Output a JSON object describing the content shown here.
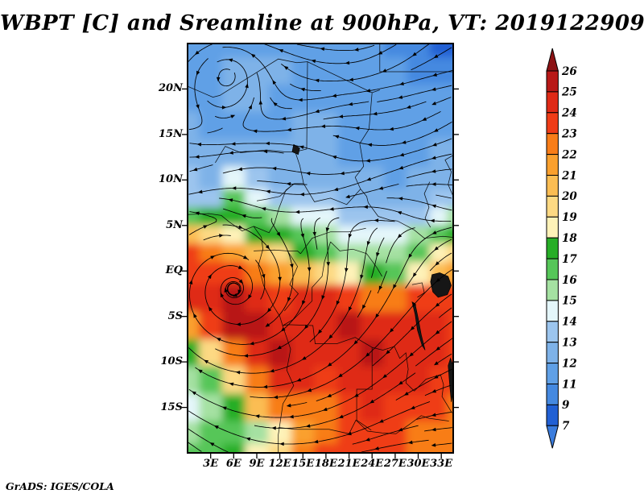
{
  "title": "WBPT [C] and Sreamline at 900hPa, VT: 2019122909",
  "footer": "GrADS: IGES/COLA",
  "axes": {
    "lat_ticks": [
      {
        "label": "20N",
        "deg": 20
      },
      {
        "label": "15N",
        "deg": 15
      },
      {
        "label": "10N",
        "deg": 10
      },
      {
        "label": "5N",
        "deg": 5
      },
      {
        "label": "EQ",
        "deg": 0
      },
      {
        "label": "5S",
        "deg": -5
      },
      {
        "label": "10S",
        "deg": -10
      },
      {
        "label": "15S",
        "deg": -15
      }
    ],
    "lon_ticks": [
      {
        "label": "3E",
        "deg": 3
      },
      {
        "label": "6E",
        "deg": 6
      },
      {
        "label": "9E",
        "deg": 9
      },
      {
        "label": "12E",
        "deg": 12
      },
      {
        "label": "15E",
        "deg": 15
      },
      {
        "label": "18E",
        "deg": 18
      },
      {
        "label": "21E",
        "deg": 21
      },
      {
        "label": "24E",
        "deg": 24
      },
      {
        "label": "27E",
        "deg": 27
      },
      {
        "label": "30E",
        "deg": 30
      },
      {
        "label": "33E",
        "deg": 33
      }
    ],
    "lat_range_deg": [
      25,
      -20
    ],
    "lon_range_deg": [
      0,
      34.5
    ]
  },
  "colorbar": {
    "labels_top_to_bottom": [
      "26",
      "25",
      "24",
      "23",
      "22",
      "21",
      "20",
      "19",
      "18",
      "17",
      "16",
      "15",
      "14",
      "13",
      "12",
      "11",
      "9",
      "7"
    ]
  },
  "chart_data": {
    "type": "heatmap",
    "title": "WBPT [C] and Sreamline at 900hPa, VT: 2019122909",
    "variable": "WBPT",
    "units": "C",
    "pressure_level": "900hPa",
    "valid_time": "2019122909",
    "overlay": "streamlines",
    "vortex_center": {
      "lon_e": 6,
      "lat": -2
    },
    "lon": [
      0,
      3,
      6,
      9,
      12,
      15,
      18,
      21,
      24,
      27,
      30,
      33,
      34.5
    ],
    "lat": [
      25,
      22,
      19,
      16,
      13,
      10,
      8,
      6,
      4,
      2,
      0,
      -3,
      -6,
      -9,
      -12,
      -15,
      -18,
      -20
    ],
    "values": [
      [
        11,
        11,
        11,
        11,
        11,
        11,
        11,
        11,
        11,
        10,
        9,
        8,
        8
      ],
      [
        11,
        11,
        12,
        12,
        12,
        11,
        11,
        11,
        11,
        11,
        10,
        10,
        10
      ],
      [
        11,
        11,
        12,
        12,
        11,
        11,
        11,
        11,
        11,
        11,
        11,
        11,
        11
      ],
      [
        12,
        11,
        11,
        11,
        11,
        12,
        12,
        11,
        11,
        11,
        11,
        11,
        11
      ],
      [
        12,
        12,
        12,
        12,
        12,
        12,
        12,
        11,
        11,
        11,
        11,
        12,
        12
      ],
      [
        13,
        12,
        14,
        13,
        12,
        12,
        12,
        12,
        12,
        11,
        12,
        12,
        12
      ],
      [
        13,
        13,
        16,
        14,
        13,
        13,
        13,
        12,
        12,
        12,
        12,
        13,
        13
      ],
      [
        16,
        17,
        17,
        16,
        15,
        14,
        14,
        13,
        13,
        13,
        13,
        14,
        15
      ],
      [
        20,
        19,
        18,
        17,
        17,
        16,
        15,
        14,
        14,
        14,
        15,
        16,
        17
      ],
      [
        23,
        22,
        21,
        20,
        19,
        17,
        16,
        15,
        15,
        15,
        16,
        18,
        19
      ],
      [
        23,
        23,
        23,
        22,
        21,
        20,
        19,
        18,
        17,
        16,
        18,
        20,
        21
      ],
      [
        24,
        24,
        25,
        24,
        23,
        24,
        24,
        23,
        22,
        22,
        23,
        23,
        23
      ],
      [
        21,
        23,
        25,
        25,
        24,
        24,
        24,
        25,
        24,
        24,
        24,
        24,
        23
      ],
      [
        17,
        19,
        22,
        24,
        25,
        24,
        24,
        24,
        25,
        24,
        24,
        24,
        23
      ],
      [
        15,
        16,
        19,
        22,
        24,
        24,
        23,
        24,
        24,
        24,
        24,
        23,
        23
      ],
      [
        14,
        15,
        17,
        20,
        22,
        22,
        22,
        23,
        24,
        23,
        23,
        23,
        22
      ],
      [
        15,
        16,
        16,
        15,
        18,
        21,
        22,
        23,
        23,
        23,
        22,
        22,
        22
      ],
      [
        16,
        16,
        17,
        18,
        19,
        22,
        23,
        23,
        23,
        23,
        22,
        22,
        22
      ]
    ],
    "contour_levels": [
      7,
      9,
      11,
      12,
      13,
      14,
      15,
      16,
      17,
      18,
      19,
      20,
      21,
      22,
      23,
      24,
      25,
      26
    ],
    "colors": [
      "#3a7cdd",
      "#2160d4",
      "#4589e0",
      "#60a0e6",
      "#7eb2e8",
      "#9cc5ee",
      "#e4f6fa",
      "#a5e1a2",
      "#56c659",
      "#27ae27",
      "#fef2b8",
      "#fdd983",
      "#fbbd53",
      "#faa02e",
      "#f87d18",
      "#ef3c17",
      "#df2a16",
      "#b81917",
      "#8c1214"
    ]
  }
}
